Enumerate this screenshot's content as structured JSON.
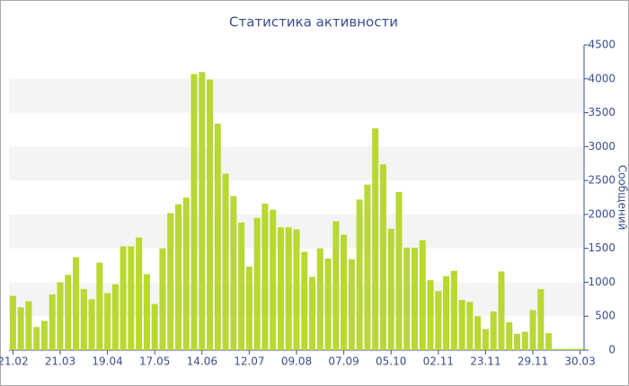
{
  "chart_data": {
    "type": "bar",
    "title": "Статистика активности",
    "y_label": "Сообщений",
    "categories": [
      "21.02",
      null,
      null,
      null,
      null,
      null,
      "21.03",
      null,
      null,
      null,
      null,
      null,
      "19.04",
      null,
      null,
      null,
      null,
      null,
      "17.05",
      null,
      null,
      null,
      null,
      null,
      "14.06",
      null,
      null,
      null,
      null,
      null,
      "12.07",
      null,
      null,
      null,
      null,
      null,
      "09.08",
      null,
      null,
      null,
      null,
      null,
      "07.09",
      null,
      null,
      null,
      null,
      null,
      "05.10",
      null,
      null,
      null,
      null,
      null,
      "02.11",
      null,
      null,
      null,
      null,
      null,
      "23.11",
      null,
      null,
      null,
      null,
      null,
      "29.11",
      null,
      null,
      null,
      null,
      null,
      "30.03"
    ],
    "values": [
      800,
      630,
      720,
      340,
      430,
      820,
      1000,
      1110,
      1370,
      900,
      750,
      1290,
      840,
      970,
      1530,
      1530,
      1660,
      1120,
      680,
      1500,
      2020,
      2150,
      2250,
      4070,
      4100,
      3990,
      3340,
      2600,
      2270,
      1880,
      1230,
      1950,
      2160,
      2070,
      1810,
      1810,
      1780,
      1450,
      1080,
      1500,
      1350,
      1900,
      1700,
      1340,
      2220,
      2440,
      3270,
      2740,
      1790,
      2330,
      1510,
      1510,
      1620,
      1030,
      870,
      1090,
      1170,
      740,
      710,
      500,
      310,
      570,
      1160,
      410,
      240,
      270,
      590,
      900,
      250,
      20,
      20,
      20,
      20
    ],
    "color": "#b8d832",
    "ylim": [
      0,
      4500
    ],
    "yticks": [
      0,
      500,
      1000,
      1500,
      2000,
      2500,
      3000,
      3500,
      4000,
      4500
    ],
    "grid": true
  }
}
